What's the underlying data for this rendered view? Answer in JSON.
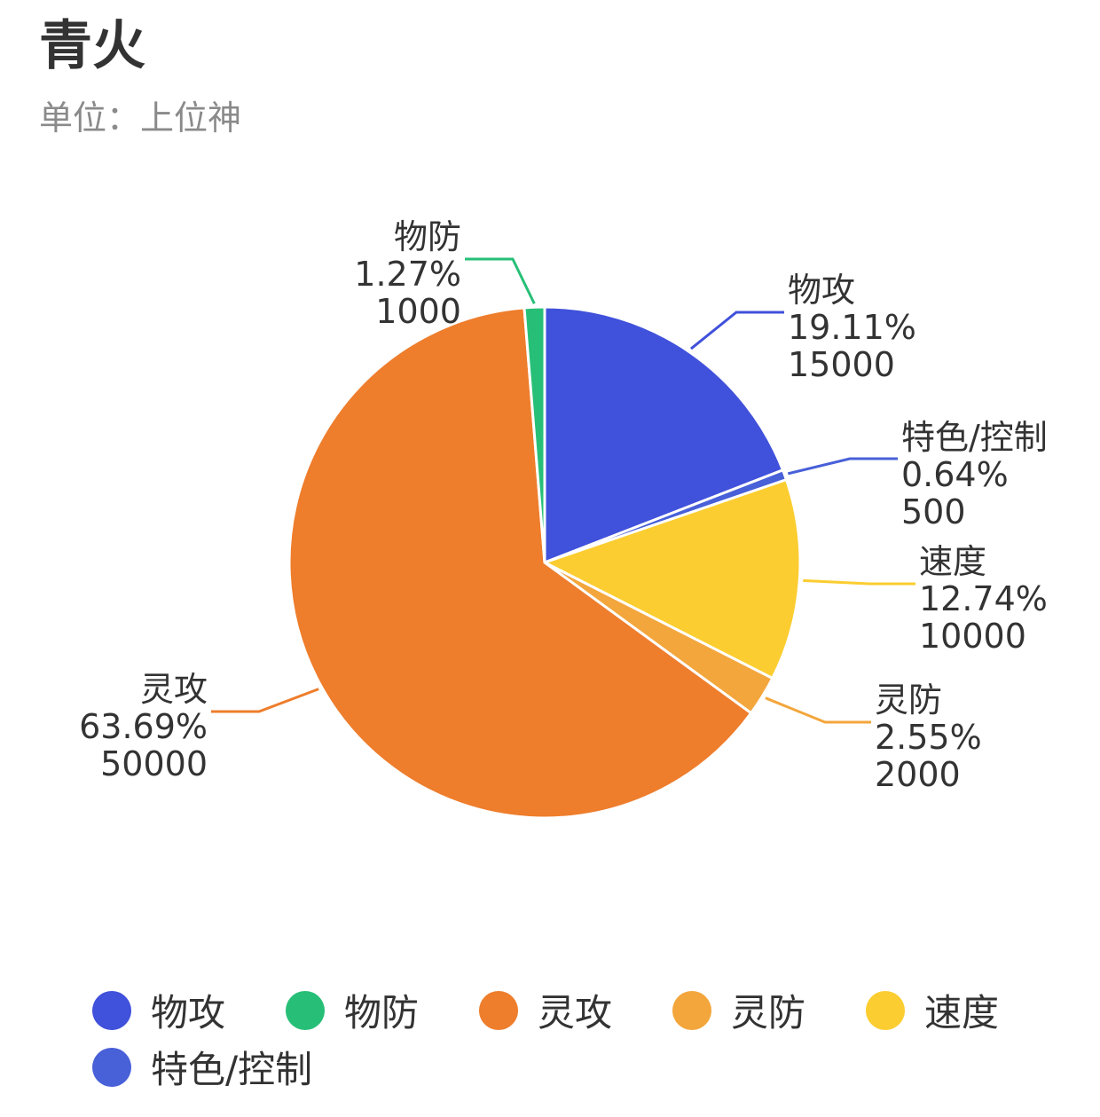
{
  "title": "青火",
  "subtitle": "单位：上位神",
  "chart_data": {
    "type": "pie",
    "title": "青火",
    "subtitle": "单位：上位神",
    "slices": [
      {
        "name": "物攻",
        "value": 15000,
        "percent": "19.11%",
        "color": "#4051db"
      },
      {
        "name": "特色/控制",
        "value": 500,
        "percent": "0.64%",
        "color": "#4860d8"
      },
      {
        "name": "速度",
        "value": 10000,
        "percent": "12.74%",
        "color": "#fbcd30"
      },
      {
        "name": "灵防",
        "value": 2000,
        "percent": "2.55%",
        "color": "#f3a63c"
      },
      {
        "name": "灵攻",
        "value": 50000,
        "percent": "63.69%",
        "color": "#ee7d2c"
      },
      {
        "name": "物防",
        "value": 1000,
        "percent": "1.27%",
        "color": "#27bf77"
      }
    ],
    "legend": {
      "placement": "bottom",
      "items": [
        "物攻",
        "物防",
        "灵攻",
        "灵防",
        "速度",
        "特色/控制"
      ]
    }
  }
}
